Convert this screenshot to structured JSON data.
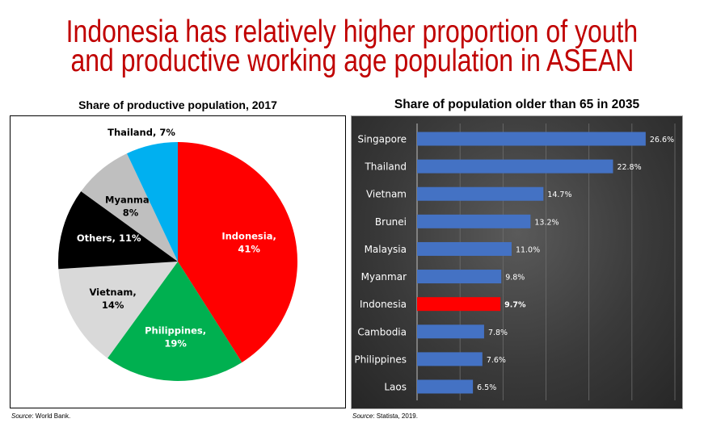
{
  "title": {
    "line1": "Indonesia has relatively higher proportion of youth",
    "line2": "and productive working age population in ASEAN",
    "color": "#C00000"
  },
  "chart_data": [
    {
      "type": "pie",
      "title": "Share of productive population, 2017",
      "slices": [
        {
          "label": "Indonesia, 41%",
          "name": "Indonesia",
          "value": 41,
          "color": "#FF0000",
          "text_color": "#FFFFFF"
        },
        {
          "label": "Philippines, 19%",
          "name": "Philippines",
          "value": 19,
          "color": "#00B050",
          "text_color": "#FFFFFF"
        },
        {
          "label": "Vietnam, 14%",
          "name": "Vietnam",
          "value": 14,
          "color": "#D9D9D9",
          "text_color": "#000000"
        },
        {
          "label": "Others, 11%",
          "name": "Others",
          "value": 11,
          "color": "#000000",
          "text_color": "#FFFFFF"
        },
        {
          "label": "Myanmar, 8%",
          "name": "Myanmar",
          "value": 8,
          "color": "#BFBFBF",
          "text_color": "#000000"
        },
        {
          "label": "Thailand, 7%",
          "name": "Thailand",
          "value": 7,
          "color": "#00B0F0",
          "text_color": "#000000"
        }
      ],
      "source_label": "Source",
      "source_text": ": World Bank."
    },
    {
      "type": "bar",
      "orientation": "horizontal",
      "title": "Share of population older than 65  in 2035",
      "categories": [
        "Singapore",
        "Thailand",
        "Vietnam",
        "Brunei",
        "Malaysia",
        "Myanmar",
        "Indonesia",
        "Cambodia",
        "Philippines",
        "Laos"
      ],
      "values": [
        26.6,
        22.8,
        14.7,
        13.2,
        11.0,
        9.8,
        9.7,
        7.8,
        7.6,
        6.5
      ],
      "labels": [
        "26.6%",
        "22.8%",
        "14.7%",
        "13.2%",
        "11.0%",
        "9.8%",
        "9.7%",
        "7.8%",
        "7.6%",
        "6.5%"
      ],
      "highlight": "Indonesia",
      "bar_color": "#4472C4",
      "highlight_color": "#FF0000",
      "xlim": [
        0,
        30
      ],
      "grid_step": 5,
      "grid": true,
      "source_label": "Source",
      "source_text": ": Statista, 2019."
    }
  ]
}
